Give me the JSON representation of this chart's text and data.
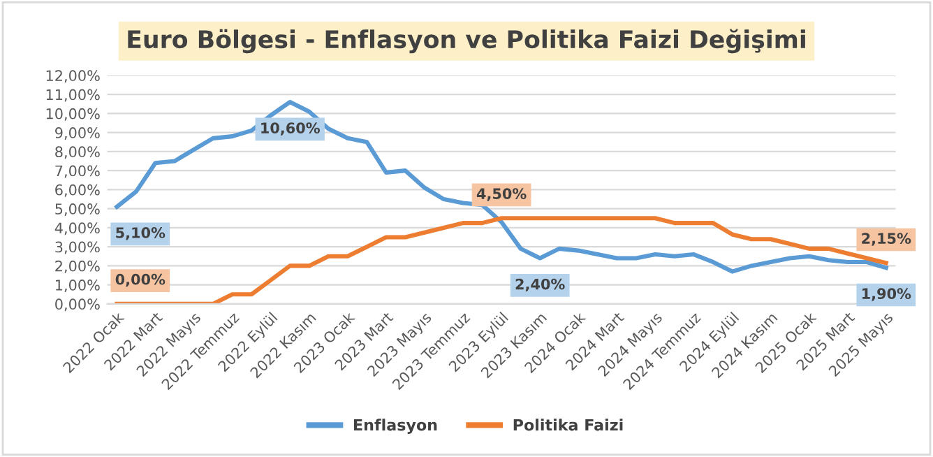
{
  "chart_data": {
    "type": "line",
    "title": "Euro Bölgesi - Enflasyon ve Politika Faizi Değişimi",
    "categories": [
      "2022 Ocak",
      null,
      "2022 Mart",
      null,
      "2022 Mayıs",
      null,
      "2022 Temmuz",
      null,
      "2022 Eylül",
      null,
      "2022 Kasım",
      null,
      "2023 Ocak",
      null,
      "2023 Mart",
      null,
      "2023 Mayıs",
      null,
      "2023 Temmuz",
      null,
      "2023 Eylül",
      null,
      "2023 Kasım",
      null,
      "2024 Ocak",
      null,
      "2024 Mart",
      null,
      "2024 Mayıs",
      null,
      "2024 Temmuz",
      null,
      "2024 Eylül",
      null,
      "2024 Kasım",
      null,
      "2025 Ocak",
      null,
      "2025 Mart",
      null,
      "2025 Mayıs"
    ],
    "series": [
      {
        "name": "Enflasyon",
        "color": "#5b9bd5",
        "values": [
          5.1,
          5.9,
          7.4,
          7.5,
          8.1,
          8.7,
          8.8,
          9.1,
          9.9,
          10.6,
          10.1,
          9.2,
          8.7,
          8.5,
          6.9,
          7.0,
          6.1,
          5.5,
          5.3,
          5.2,
          4.3,
          2.9,
          2.4,
          2.9,
          2.8,
          2.6,
          2.4,
          2.4,
          2.6,
          2.5,
          2.6,
          2.2,
          1.7,
          2.0,
          2.2,
          2.4,
          2.5,
          2.3,
          2.2,
          2.2,
          1.9
        ],
        "value_labels": [
          "5,10%",
          null,
          null,
          null,
          null,
          null,
          null,
          null,
          null,
          "10,60%",
          null,
          null,
          null,
          null,
          null,
          null,
          null,
          null,
          null,
          null,
          null,
          null,
          "2,40%",
          null,
          null,
          null,
          null,
          null,
          null,
          null,
          null,
          null,
          null,
          null,
          null,
          null,
          null,
          null,
          null,
          null,
          "1,90%"
        ]
      },
      {
        "name": "Politika Faizi",
        "color": "#ed7d31",
        "values": [
          0,
          0,
          0,
          0,
          0,
          0,
          0.5,
          0.5,
          1.25,
          2.0,
          2.0,
          2.5,
          2.5,
          3.0,
          3.5,
          3.5,
          3.75,
          4.0,
          4.25,
          4.25,
          4.5,
          4.5,
          4.5,
          4.5,
          4.5,
          4.5,
          4.5,
          4.5,
          4.5,
          4.25,
          4.25,
          4.25,
          3.65,
          3.4,
          3.4,
          3.15,
          2.9,
          2.9,
          2.65,
          2.4,
          2.15
        ],
        "value_labels": [
          "0,00%",
          null,
          null,
          null,
          null,
          null,
          null,
          null,
          null,
          null,
          null,
          null,
          null,
          null,
          null,
          null,
          null,
          null,
          null,
          null,
          "4,50%",
          null,
          null,
          null,
          null,
          null,
          null,
          null,
          null,
          null,
          null,
          null,
          null,
          null,
          null,
          null,
          null,
          null,
          null,
          null,
          "2,15%"
        ]
      }
    ],
    "ylim": [
      0,
      12
    ],
    "yticks": [
      {
        "value": 0,
        "label": "0,00%"
      },
      {
        "value": 1,
        "label": "1,00%"
      },
      {
        "value": 2,
        "label": "2,00%"
      },
      {
        "value": 3,
        "label": "3,00%"
      },
      {
        "value": 4,
        "label": "4,00%"
      },
      {
        "value": 5,
        "label": "5,00%"
      },
      {
        "value": 6,
        "label": "6,00%"
      },
      {
        "value": 7,
        "label": "7,00%"
      },
      {
        "value": 8,
        "label": "8,00%"
      },
      {
        "value": 9,
        "label": "9,00%"
      },
      {
        "value": 10,
        "label": "10,00%"
      },
      {
        "value": 11,
        "label": "11,00%"
      },
      {
        "value": 12,
        "label": "12,00%"
      }
    ],
    "grid": "y",
    "legend": "bottom",
    "marker": "none",
    "line_style": "solid"
  }
}
